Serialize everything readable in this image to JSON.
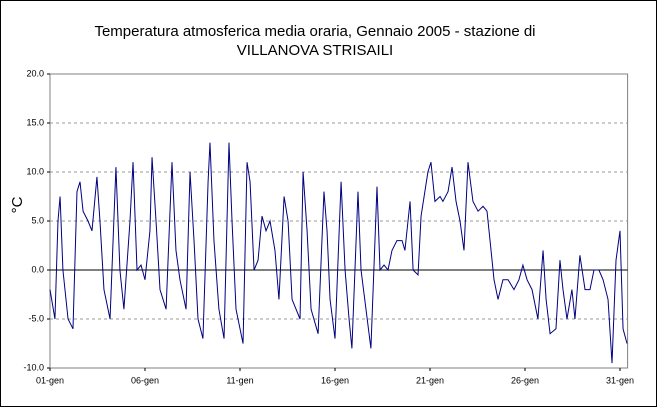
{
  "chart_data": {
    "type": "line",
    "title": [
      "Temperatura atmosferica media oraria, Gennaio 2005 - stazione di",
      "VILLANOVA STRISAILI"
    ],
    "ylabel": "°C",
    "xlim": [
      1,
      31.4
    ],
    "xticks": [
      {
        "value": 1,
        "label": "01-gen"
      },
      {
        "value": 6,
        "label": "06-gen"
      },
      {
        "value": 11,
        "label": "11-gen"
      },
      {
        "value": 16,
        "label": "16-gen"
      },
      {
        "value": 21,
        "label": "21-gen"
      },
      {
        "value": 26,
        "label": "26-gen"
      },
      {
        "value": 31,
        "label": "31-gen"
      }
    ],
    "ylim": [
      -10,
      20
    ],
    "yticks": [
      {
        "value": -10,
        "label": "-10.0"
      },
      {
        "value": -5,
        "label": "-5.0"
      },
      {
        "value": 0,
        "label": "0.0"
      },
      {
        "value": 5,
        "label": "5.0"
      },
      {
        "value": 10,
        "label": "10.0"
      },
      {
        "value": 15,
        "label": "15.0"
      },
      {
        "value": 20,
        "label": "20.0"
      }
    ],
    "grid": true,
    "x": [
      1.0,
      1.26,
      1.42,
      1.53,
      1.68,
      1.95,
      2.21,
      2.42,
      2.58,
      2.74,
      3.0,
      3.21,
      3.47,
      3.63,
      3.84,
      4.16,
      4.47,
      4.68,
      4.89,
      5.21,
      5.37,
      5.58,
      5.79,
      6.0,
      6.26,
      6.37,
      6.58,
      6.79,
      7.11,
      7.42,
      7.63,
      7.84,
      8.16,
      8.37,
      8.58,
      8.79,
      9.05,
      9.32,
      9.42,
      9.63,
      9.89,
      10.16,
      10.42,
      10.58,
      10.79,
      11.16,
      11.37,
      11.53,
      11.74,
      11.95,
      12.16,
      12.37,
      12.58,
      12.84,
      13.05,
      13.32,
      13.53,
      13.74,
      14.16,
      14.32,
      14.53,
      14.74,
      15.11,
      15.42,
      15.58,
      15.74,
      16.0,
      16.32,
      16.53,
      16.74,
      16.89,
      17.21,
      17.37,
      17.63,
      17.89,
      18.21,
      18.37,
      18.58,
      18.79,
      19.0,
      19.26,
      19.53,
      19.68,
      19.95,
      20.11,
      20.37,
      20.53,
      20.89,
      21.05,
      21.26,
      21.53,
      21.68,
      21.95,
      22.16,
      22.37,
      22.58,
      22.79,
      23.0,
      23.26,
      23.53,
      23.79,
      24.0,
      24.16,
      24.37,
      24.58,
      24.84,
      25.11,
      25.42,
      25.68,
      25.89,
      26.11,
      26.37,
      26.68,
      26.95,
      27.11,
      27.32,
      27.63,
      27.84,
      28.0,
      28.21,
      28.47,
      28.63,
      28.89,
      29.16,
      29.42,
      29.63,
      29.89,
      30.11,
      30.37,
      30.58,
      30.79,
      31.0,
      31.16,
      31.37
    ],
    "series": [
      {
        "color": "#000080",
        "values": [
          -2,
          -5,
          5,
          7.5,
          0,
          -5,
          -6,
          8,
          9,
          6,
          5,
          4,
          9.5,
          5,
          -2,
          -5,
          10.5,
          0,
          -4,
          5,
          11,
          0,
          0.5,
          -1,
          4,
          11.5,
          5,
          -2,
          -4,
          11,
          2,
          -1,
          -4,
          10,
          3,
          -5,
          -7,
          9,
          13,
          3,
          -4,
          -7,
          13,
          5,
          -4,
          -7.5,
          11,
          9,
          0,
          1,
          5.5,
          4,
          5,
          2,
          -3,
          7.5,
          5,
          -3,
          -5,
          10,
          4,
          -4,
          -6.5,
          8,
          4,
          -3,
          -7,
          9,
          0,
          -5,
          -8,
          8,
          0,
          -4,
          -8,
          8.5,
          0,
          0.5,
          0,
          2,
          3,
          3,
          2,
          7,
          0,
          -0.5,
          5.5,
          10,
          11,
          7,
          7.5,
          7,
          8,
          10.5,
          7,
          5,
          2,
          11,
          7,
          6,
          6.5,
          6,
          3,
          -1,
          -3,
          -1,
          -1,
          -2,
          -1,
          0.5,
          -1,
          -2,
          -5,
          2,
          -3,
          -6.5,
          -6,
          1,
          -2,
          -5,
          -2,
          -5,
          1.5,
          -2,
          -2,
          0,
          0,
          -1,
          -3,
          -9.5,
          1,
          4,
          -6,
          -7.5
        ]
      }
    ]
  }
}
